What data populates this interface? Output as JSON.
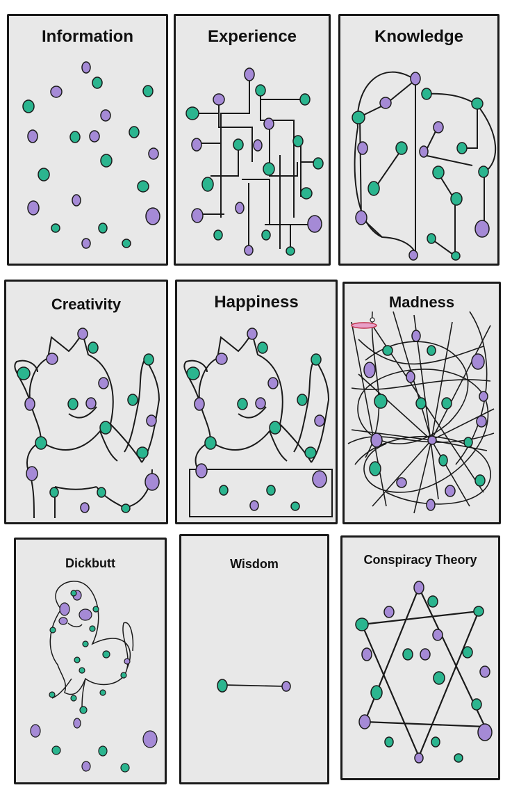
{
  "colors": {
    "teal": "#2bb58f",
    "purple": "#a58ad6",
    "panel": "#e8e8e8",
    "ink": "#1a1a1a"
  },
  "panels": [
    {
      "title": "Information"
    },
    {
      "title": "Experience"
    },
    {
      "title": "Knowledge"
    },
    {
      "title": "Creativity"
    },
    {
      "title": "Happiness"
    },
    {
      "title": "Madness"
    },
    {
      "title": "Dickbutt"
    },
    {
      "title": "Wisdom"
    },
    {
      "title": "Conspiracy Theory"
    }
  ]
}
